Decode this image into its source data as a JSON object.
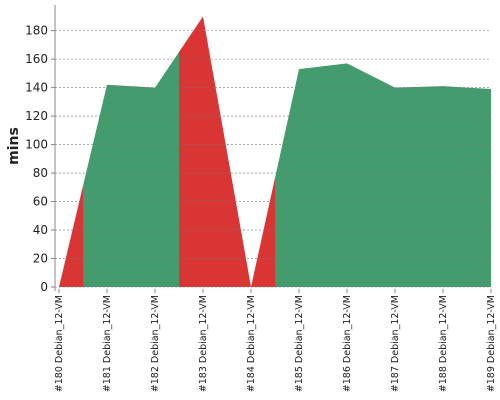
{
  "chart_data": {
    "type": "area",
    "y_label": "mins",
    "categories": [
      "#180 Debian_12-VM",
      "#181 Debian_12-VM",
      "#182 Debian_12-VM",
      "#183 Debian_12-VM",
      "#184 Debian_12-VM",
      "#185 Debian_12-VM",
      "#186 Debian_12-VM",
      "#187 Debian_12-VM",
      "#188 Debian_12-VM",
      "#189 Debian_12-VM"
    ],
    "values": [
      0,
      142,
      140,
      190,
      0,
      153,
      157,
      140,
      141,
      139
    ],
    "colors": [
      "#d93535",
      "#449b6e",
      "#449b6e",
      "#d93535",
      "#d93535",
      "#449b6e",
      "#449b6e",
      "#449b6e",
      "#449b6e",
      "#449b6e"
    ],
    "ylim": [
      0,
      198
    ],
    "yticks": [
      0,
      20,
      40,
      60,
      80,
      100,
      120,
      140,
      160,
      180
    ],
    "grid": true
  }
}
